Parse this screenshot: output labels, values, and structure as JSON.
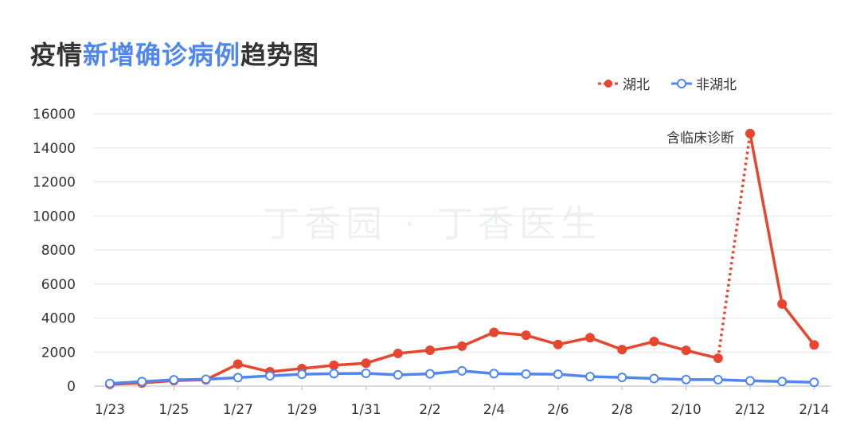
{
  "title": {
    "part1": "疫情",
    "part2": "新增确诊病例",
    "part3": "趋势图"
  },
  "watermark": "丁香园 · 丁香医生",
  "colors": {
    "hubei": "#e8452e",
    "other": "#4f86f0",
    "grid": "#e6e6e6",
    "text": "#333333"
  },
  "chart_data": {
    "type": "line",
    "title": "疫情新增确诊病例趋势图",
    "xlabel": "",
    "ylabel": "",
    "ylim": [
      0,
      16000
    ],
    "yticks": [
      "0",
      "2000",
      "4000",
      "6000",
      "8000",
      "10000",
      "12000",
      "14000",
      "16000"
    ],
    "x": [
      "1/23",
      "1/24",
      "1/25",
      "1/26",
      "1/27",
      "1/28",
      "1/29",
      "1/30",
      "1/31",
      "2/1",
      "2/2",
      "2/3",
      "2/4",
      "2/5",
      "2/6",
      "2/7",
      "2/8",
      "2/9",
      "2/10",
      "2/11",
      "2/12",
      "2/13",
      "2/14"
    ],
    "xtick_labels": [
      "1/23",
      "",
      "1/25",
      "",
      "1/27",
      "",
      "1/29",
      "",
      "1/31",
      "",
      "2/2",
      "",
      "2/4",
      "",
      "2/6",
      "",
      "2/8",
      "",
      "2/10",
      "",
      "2/12",
      "",
      "2/14"
    ],
    "grid": true,
    "legend_position": "top-right",
    "series": [
      {
        "name": "湖北",
        "color": "#e8452e",
        "values": [
          105,
          180,
          320,
          371,
          1291,
          840,
          1032,
          1220,
          1347,
          1921,
          2103,
          2345,
          3156,
          2987,
          2447,
          2841,
          2147,
          2618,
          2097,
          1638,
          14840,
          4823,
          2420
        ]
      },
      {
        "name": "非湖北",
        "color": "#4f86f0",
        "values": [
          154,
          264,
          366,
          400,
          496,
          605,
          696,
          732,
          749,
          659,
          717,
          895,
          730,
          707,
          694,
          558,
          509,
          444,
          381,
          377,
          312,
          267,
          221
        ]
      }
    ],
    "annotation": {
      "text": "含临床诊断",
      "x": "2/12"
    }
  }
}
